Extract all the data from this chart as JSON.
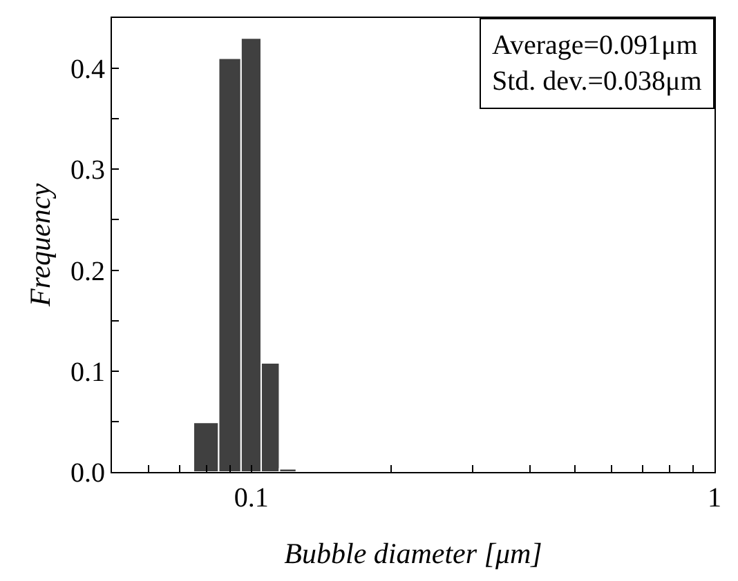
{
  "chart_data": {
    "type": "histogram",
    "xlabel": "Bubble diameter [μm]",
    "ylabel": "Frequency",
    "bins": [
      0.075,
      0.085,
      0.095,
      0.105,
      0.115,
      0.125
    ],
    "values": [
      0.049,
      0.41,
      0.43,
      0.108,
      0.003
    ],
    "color": "#404040",
    "log": "x",
    "xlim": [
      0.05,
      1
    ],
    "xticks": [
      {
        "value": 0.06,
        "label": null
      },
      {
        "value": 0.07,
        "label": null
      },
      {
        "value": 0.08,
        "label": null
      },
      {
        "value": 0.09,
        "label": null
      },
      0.1,
      {
        "value": 0.2,
        "label": null
      },
      {
        "value": 0.3,
        "label": null
      },
      {
        "value": 0.4,
        "label": null
      },
      {
        "value": 0.5,
        "label": null
      },
      {
        "value": 0.6,
        "label": null
      },
      {
        "value": 0.7,
        "label": null
      },
      {
        "value": 0.8,
        "label": null
      },
      {
        "value": 0.9,
        "label": null
      },
      1
    ],
    "ylim": [
      0,
      0.45
    ],
    "yticks": [
      {
        "value": 0,
        "label": "0.0"
      },
      {
        "value": 0.05,
        "label": null
      },
      0.1,
      {
        "value": 0.15,
        "label": null
      },
      0.2,
      {
        "value": 0.25,
        "label": null
      },
      0.3,
      {
        "value": 0.35,
        "label": null
      },
      0.4
    ],
    "annotations": [
      "Average=0.091μm",
      "Std. dev.=0.038μm"
    ]
  }
}
